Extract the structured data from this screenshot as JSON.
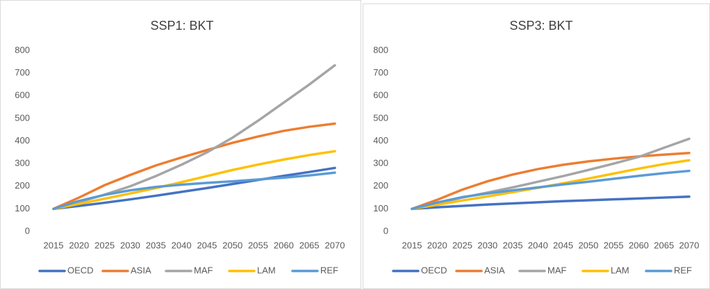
{
  "chart_data": [
    {
      "type": "line",
      "title": "SSP1: BKT",
      "categories": [
        "2015",
        "2020",
        "2025",
        "2030",
        "2035",
        "2040",
        "2045",
        "2050",
        "2055",
        "2060",
        "2065",
        "2070"
      ],
      "ylim": [
        0,
        800
      ],
      "yticks": [
        0,
        100,
        200,
        300,
        400,
        500,
        600,
        700,
        800
      ],
      "grid": false,
      "legend": "bottom",
      "series": [
        {
          "name": "OECD",
          "color": "#4472c4",
          "values": [
            100,
            113,
            127,
            142,
            158,
            175,
            192,
            210,
            228,
            246,
            263,
            281
          ]
        },
        {
          "name": "ASIA",
          "color": "#ed7d31",
          "values": [
            100,
            150,
            205,
            250,
            292,
            327,
            360,
            392,
            420,
            445,
            463,
            477
          ]
        },
        {
          "name": "MAF",
          "color": "#a5a5a5",
          "values": [
            100,
            130,
            163,
            200,
            245,
            295,
            350,
            415,
            490,
            570,
            650,
            735
          ]
        },
        {
          "name": "LAM",
          "color": "#ffc000",
          "values": [
            100,
            122,
            145,
            168,
            192,
            218,
            245,
            272,
            296,
            318,
            338,
            355
          ]
        },
        {
          "name": "REF",
          "color": "#5b9bd5",
          "values": [
            100,
            135,
            162,
            182,
            197,
            207,
            215,
            222,
            230,
            238,
            248,
            260
          ]
        }
      ]
    },
    {
      "type": "line",
      "title": "SSP3: BKT",
      "categories": [
        "2015",
        "2020",
        "2025",
        "2030",
        "2035",
        "2040",
        "2045",
        "2050",
        "2055",
        "2060",
        "2065",
        "2070"
      ],
      "ylim": [
        0,
        800
      ],
      "yticks": [
        0,
        100,
        200,
        300,
        400,
        500,
        600,
        700,
        800
      ],
      "grid": false,
      "legend": "bottom",
      "series": [
        {
          "name": "OECD",
          "color": "#4472c4",
          "values": [
            100,
            107,
            113,
            119,
            124,
            129,
            134,
            138,
            142,
            146,
            150,
            154
          ]
        },
        {
          "name": "ASIA",
          "color": "#ed7d31",
          "values": [
            100,
            140,
            185,
            222,
            252,
            276,
            295,
            310,
            322,
            332,
            340,
            347
          ]
        },
        {
          "name": "MAF",
          "color": "#a5a5a5",
          "values": [
            100,
            125,
            150,
            172,
            195,
            220,
            245,
            272,
            300,
            330,
            370,
            410
          ]
        },
        {
          "name": "LAM",
          "color": "#ffc000",
          "values": [
            100,
            118,
            137,
            155,
            174,
            193,
            213,
            234,
            256,
            278,
            298,
            315
          ]
        },
        {
          "name": "REF",
          "color": "#5b9bd5",
          "values": [
            100,
            128,
            152,
            168,
            182,
            195,
            208,
            220,
            233,
            246,
            258,
            268
          ]
        }
      ]
    }
  ]
}
